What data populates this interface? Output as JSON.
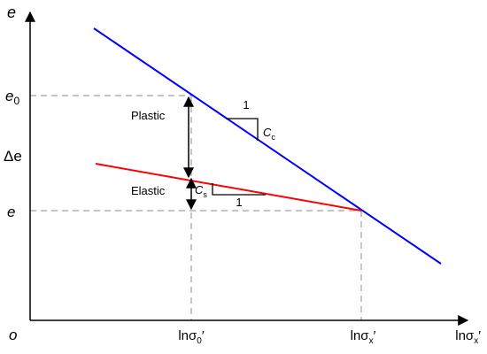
{
  "axes": {
    "y_name": "e",
    "origin": "o",
    "x_name": "lnσx′"
  },
  "y_marks": {
    "e0": {
      "base": "e",
      "sub": "0"
    },
    "delta_e": "Δe",
    "e": "e"
  },
  "x_marks": {
    "sigma0": {
      "pre": "lnσ",
      "sub": "0",
      "post": "′"
    },
    "sigmax": {
      "pre": "lnσ",
      "sub": "x",
      "post": "′"
    },
    "axis_end": {
      "pre": "lnσ",
      "sub": "x",
      "post": "′"
    }
  },
  "lines": {
    "compression": {
      "color": "#0000ff"
    },
    "swelling": {
      "color": "#ff0000"
    }
  },
  "labels": {
    "plastic": "Plastic",
    "elastic": "Elastic"
  },
  "triangles": {
    "cc": {
      "run": "1",
      "rise": {
        "base": "C",
        "sub": "c"
      }
    },
    "cs": {
      "rise": {
        "base": "C",
        "sub": "s"
      },
      "run": "1"
    }
  },
  "colors": {
    "axes": "#000000",
    "guide": "#a0a0a0"
  }
}
